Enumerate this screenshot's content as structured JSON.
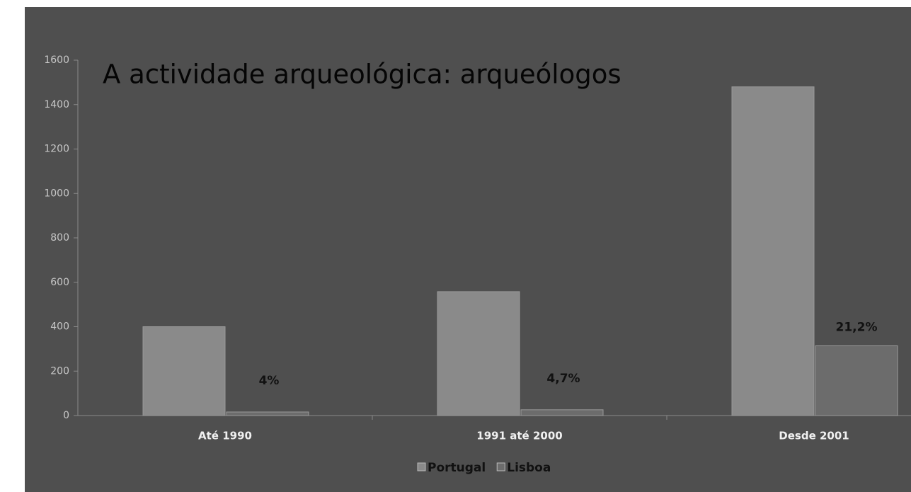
{
  "chart_data": {
    "type": "bar",
    "title": "A actividade arqueológica: arqueólogos",
    "categories": [
      "Até 1990",
      "1991 até 2000",
      "Desde 2001"
    ],
    "series": [
      {
        "name": "Portugal",
        "color": "#8a8a8a",
        "values": [
          400,
          558,
          1480
        ]
      },
      {
        "name": "Lisboa",
        "color": "#6c6c6c",
        "values": [
          16,
          26,
          314
        ]
      }
    ],
    "annotations": [
      "4%",
      "4,7%",
      "21,2%"
    ],
    "ylim": [
      0,
      1600
    ],
    "yticks": [
      0,
      200,
      400,
      600,
      800,
      1000,
      1200,
      1400,
      1600
    ],
    "grid": false,
    "legend": "bottom"
  }
}
